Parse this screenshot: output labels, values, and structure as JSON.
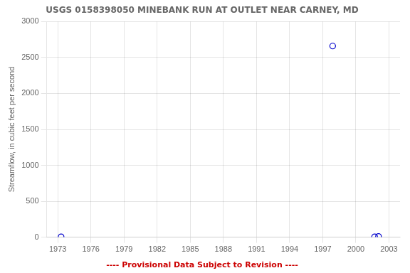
{
  "chart_data": {
    "type": "scatter",
    "title": "USGS 0158398050 MINEBANK RUN AT OUTLET NEAR CARNEY, MD",
    "ylabel": "Streamflow, in cubic feet per second",
    "x": [
      1973.3,
      1997.9,
      2001.7,
      2002.05
    ],
    "values": [
      5,
      2660,
      5,
      10
    ],
    "color": "#0000CC",
    "marker": "circle",
    "xlim": [
      1972.0,
      2004.0
    ],
    "xticks": [
      1973,
      1976,
      1979,
      1982,
      1985,
      1988,
      1991,
      1994,
      1997,
      2000,
      2003
    ],
    "ylim": [
      0,
      3000
    ],
    "yticks": [
      0,
      500,
      1000,
      1500,
      2000,
      2500,
      3000
    ],
    "grid": true,
    "annotations": [
      {
        "text": "---- Provisional Data Subject to Revision ----",
        "color": "#cc0000"
      }
    ]
  }
}
